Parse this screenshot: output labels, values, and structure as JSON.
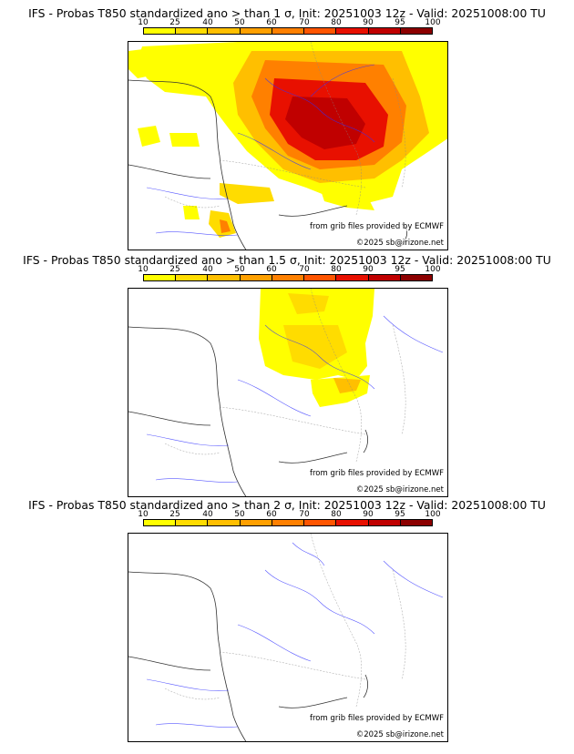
{
  "colorbar": {
    "ticks": [
      "10",
      "25",
      "40",
      "50",
      "60",
      "70",
      "80",
      "90",
      "95",
      "100"
    ],
    "colors": [
      "#ffff00",
      "#ffdc00",
      "#ffbf00",
      "#ffa000",
      "#ff8000",
      "#ff5500",
      "#e81000",
      "#c00000",
      "#8c0000",
      "#5a0000"
    ]
  },
  "panels": [
    {
      "title": "IFS - Probas T850  standardized ano > than 1 σ, Init: 20251003 12z - Valid: 20251008:00 TU",
      "credit_source": "from grib files provided by ECMWF",
      "credit_copyright": "©2025 sb@irizone.net",
      "threshold_sigma": 1,
      "coverage_level": "high"
    },
    {
      "title": "IFS - Probas T850  standardized ano > than 1.5 σ, Init: 20251003 12z - Valid: 20251008:00 TU",
      "credit_source": "from grib files provided by ECMWF",
      "credit_copyright": "©2025 sb@irizone.net",
      "threshold_sigma": 1.5,
      "coverage_level": "medium"
    },
    {
      "title": "IFS - Probas T850  standardized ano > than 2 σ, Init: 20251003 12z - Valid: 20251008:00 TU",
      "credit_source": "from grib files provided by ECMWF",
      "credit_copyright": "©2025 sb@irizone.net",
      "threshold_sigma": 2,
      "coverage_level": "none"
    }
  ]
}
